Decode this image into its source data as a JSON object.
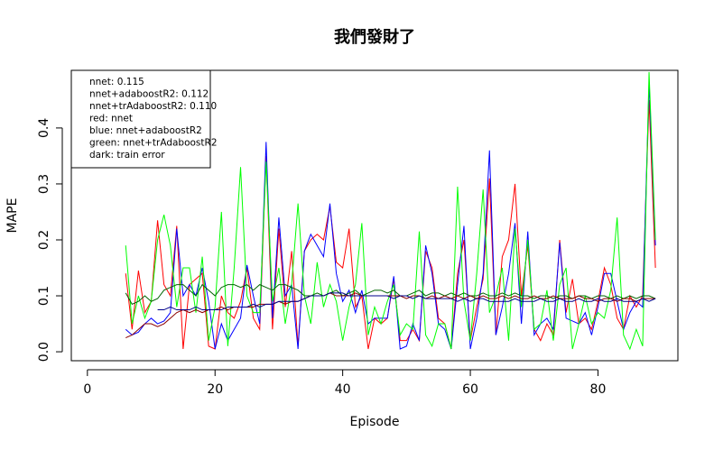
{
  "chart_data": {
    "type": "line",
    "title": "我們發財了",
    "x_label": "Episode",
    "y_label": "MAPE",
    "annotations": [
      "nnet: 0.115",
      "nnet+adaboostR2: 0.112",
      "nnet+trAdaboostR2: 0.110",
      "red: nnet",
      "blue: nnet+adaboostR2",
      "green: nnet+trAdaboostR2",
      "dark: train error"
    ],
    "x": [
      6,
      7,
      8,
      9,
      10,
      11,
      12,
      13,
      14,
      15,
      16,
      17,
      18,
      19,
      20,
      21,
      22,
      23,
      24,
      25,
      26,
      27,
      28,
      29,
      30,
      31,
      32,
      33,
      34,
      35,
      36,
      37,
      38,
      39,
      40,
      41,
      42,
      43,
      44,
      45,
      46,
      47,
      48,
      49,
      50,
      51,
      52,
      53,
      54,
      55,
      56,
      57,
      58,
      59,
      60,
      61,
      62,
      63,
      64,
      65,
      66,
      67,
      68,
      69,
      70,
      71,
      72,
      73,
      74,
      75,
      76,
      77,
      78,
      79,
      80,
      81,
      82,
      83,
      84,
      85,
      86,
      87,
      88,
      89
    ],
    "series": [
      {
        "color": "#ff0000",
        "values": [
          0.14,
          0.04,
          0.145,
          0.07,
          0.09,
          0.235,
          0.12,
          0.1,
          0.225,
          0.005,
          0.12,
          0.13,
          0.14,
          0.01,
          0.005,
          0.1,
          0.07,
          0.06,
          0.09,
          0.15,
          0.06,
          0.04,
          0.35,
          0.04,
          0.22,
          0.08,
          0.18,
          0.01,
          0.18,
          0.2,
          0.21,
          0.2,
          0.26,
          0.16,
          0.15,
          0.22,
          0.08,
          0.1,
          0.005,
          0.06,
          0.05,
          0.06,
          0.13,
          0.02,
          0.02,
          0.04,
          0.02,
          0.18,
          0.15,
          0.06,
          0.05,
          0.005,
          0.14,
          0.2,
          0.02,
          0.08,
          0.13,
          0.31,
          0.03,
          0.17,
          0.2,
          0.3,
          0.1,
          0.19,
          0.04,
          0.02,
          0.05,
          0.03,
          0.2,
          0.07,
          0.13,
          0.05,
          0.06,
          0.04,
          0.09,
          0.15,
          0.12,
          0.06,
          0.04,
          0.1,
          0.08,
          0.1,
          0.45,
          0.15
        ]
      },
      {
        "color": "#0000ff",
        "values": [
          0.04,
          0.03,
          0.035,
          0.05,
          0.06,
          0.05,
          0.055,
          0.07,
          0.22,
          0.1,
          0.12,
          0.1,
          0.15,
          0.09,
          0.005,
          0.05,
          0.02,
          0.04,
          0.06,
          0.155,
          0.1,
          0.05,
          0.375,
          0.06,
          0.24,
          0.1,
          0.12,
          0.005,
          0.18,
          0.21,
          0.19,
          0.17,
          0.265,
          0.14,
          0.09,
          0.11,
          0.07,
          0.11,
          0.05,
          0.06,
          0.06,
          0.06,
          0.135,
          0.005,
          0.01,
          0.05,
          0.02,
          0.19,
          0.14,
          0.05,
          0.04,
          0.005,
          0.12,
          0.225,
          0.005,
          0.06,
          0.14,
          0.36,
          0.03,
          0.08,
          0.14,
          0.23,
          0.05,
          0.215,
          0.03,
          0.05,
          0.06,
          0.04,
          0.195,
          0.06,
          0.055,
          0.05,
          0.07,
          0.03,
          0.08,
          0.14,
          0.14,
          0.09,
          0.04,
          0.07,
          0.09,
          0.08,
          0.48,
          0.19
        ]
      },
      {
        "color": "#00ff00",
        "values": [
          0.19,
          0.05,
          0.1,
          0.06,
          0.09,
          0.2,
          0.245,
          0.19,
          0.08,
          0.15,
          0.15,
          0.07,
          0.17,
          0.02,
          0.08,
          0.25,
          0.01,
          0.15,
          0.33,
          0.1,
          0.07,
          0.07,
          0.34,
          0.09,
          0.15,
          0.05,
          0.12,
          0.265,
          0.1,
          0.05,
          0.16,
          0.08,
          0.12,
          0.09,
          0.02,
          0.08,
          0.12,
          0.23,
          0.03,
          0.08,
          0.05,
          0.09,
          0.12,
          0.03,
          0.05,
          0.04,
          0.215,
          0.03,
          0.01,
          0.05,
          0.05,
          0.005,
          0.295,
          0.09,
          0.02,
          0.14,
          0.29,
          0.07,
          0.1,
          0.15,
          0.02,
          0.22,
          0.08,
          0.2,
          0.04,
          0.05,
          0.11,
          0.02,
          0.12,
          0.15,
          0.005,
          0.05,
          0.1,
          0.05,
          0.07,
          0.06,
          0.11,
          0.24,
          0.03,
          0.005,
          0.04,
          0.01,
          0.5,
          0.2
        ]
      },
      {
        "color": "#006400",
        "values": [
          0.105,
          0.085,
          0.09,
          0.1,
          0.09,
          0.095,
          0.11,
          0.115,
          0.12,
          0.12,
          0.11,
          0.1,
          0.12,
          0.11,
          0.1,
          0.115,
          0.12,
          0.12,
          0.115,
          0.12,
          0.11,
          0.12,
          0.115,
          0.11,
          0.12,
          0.12,
          0.115,
          0.11,
          0.1,
          0.1,
          0.105,
          0.1,
          0.105,
          0.11,
          0.1,
          0.105,
          0.11,
          0.1,
          0.105,
          0.11,
          0.11,
          0.105,
          0.11,
          0.1,
          0.1,
          0.105,
          0.11,
          0.1,
          0.105,
          0.105,
          0.1,
          0.105,
          0.1,
          0.105,
          0.1,
          0.1,
          0.105,
          0.1,
          0.1,
          0.105,
          0.1,
          0.105,
          0.1,
          0.1,
          0.095,
          0.1,
          0.1,
          0.095,
          0.1,
          0.1,
          0.095,
          0.1,
          0.1,
          0.095,
          0.1,
          0.1,
          0.095,
          0.1,
          0.095,
          0.1,
          0.095,
          0.1,
          0.1,
          0.095
        ]
      },
      {
        "color": "#8b0000",
        "values": [
          0.025,
          0.03,
          0.04,
          0.05,
          0.05,
          0.045,
          0.05,
          0.06,
          0.07,
          0.075,
          0.07,
          0.075,
          0.07,
          0.075,
          0.075,
          0.08,
          0.075,
          0.08,
          0.08,
          0.08,
          0.08,
          0.085,
          0.085,
          0.085,
          0.09,
          0.085,
          0.09,
          0.09,
          0.095,
          0.1,
          0.1,
          0.1,
          0.105,
          0.1,
          0.1,
          0.1,
          0.105,
          0.1,
          0.1,
          0.1,
          0.1,
          0.1,
          0.1,
          0.1,
          0.095,
          0.1,
          0.1,
          0.095,
          0.1,
          0.095,
          0.1,
          0.095,
          0.1,
          0.095,
          0.1,
          0.095,
          0.1,
          0.095,
          0.095,
          0.1,
          0.095,
          0.1,
          0.095,
          0.095,
          0.1,
          0.095,
          0.095,
          0.1,
          0.095,
          0.095,
          0.095,
          0.1,
          0.095,
          0.095,
          0.09,
          0.095,
          0.095,
          0.09,
          0.095,
          0.095,
          0.09,
          0.095,
          0.095,
          0.095
        ]
      },
      {
        "color": "#00008b",
        "values": [
          null,
          null,
          null,
          null,
          null,
          0.075,
          0.075,
          0.08,
          0.075,
          0.075,
          0.075,
          0.08,
          0.075,
          0.075,
          0.075,
          0.075,
          0.08,
          0.08,
          0.08,
          0.08,
          0.085,
          0.08,
          0.085,
          0.085,
          0.09,
          0.09,
          0.09,
          0.09,
          0.095,
          0.1,
          0.1,
          0.1,
          0.105,
          0.105,
          0.105,
          0.1,
          0.1,
          0.1,
          0.1,
          0.1,
          0.1,
          0.1,
          0.095,
          0.1,
          0.1,
          0.095,
          0.1,
          0.095,
          0.095,
          0.095,
          0.095,
          0.095,
          0.09,
          0.095,
          0.09,
          0.095,
          0.095,
          0.09,
          0.09,
          0.09,
          0.09,
          0.095,
          0.09,
          0.09,
          0.09,
          0.095,
          0.09,
          0.09,
          0.095,
          0.09,
          0.09,
          0.095,
          0.09,
          0.09,
          0.095,
          0.09,
          0.09,
          0.095,
          0.09,
          0.09,
          0.09,
          0.095,
          0.09,
          0.095
        ]
      }
    ],
    "xlim": [
      -2.52,
      92.52
    ],
    "ylim": [
      -0.016,
      0.503
    ],
    "xticks": [
      0,
      20,
      40,
      60,
      80
    ],
    "yticks": [
      {
        "value": 0,
        "label": "0.0"
      },
      0.1,
      0.2,
      0.3,
      0.4
    ]
  }
}
